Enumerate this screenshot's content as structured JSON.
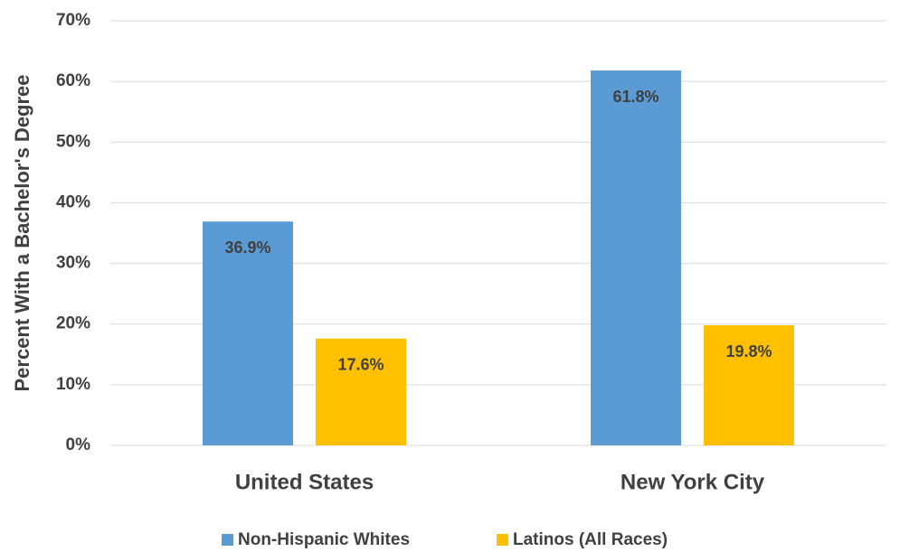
{
  "chart_data": {
    "type": "bar",
    "y_label": "Percent With a Bachelor's Degree",
    "categories": [
      "United States",
      "New York City"
    ],
    "series": [
      {
        "name": "Non-Hispanic Whites",
        "color": "#5b9bd5",
        "values": [
          36.9,
          61.8
        ],
        "value_labels": [
          "36.9%",
          "61.8%"
        ]
      },
      {
        "name": "Latinos (All Races)",
        "color": "#ffc000",
        "values": [
          17.6,
          19.8
        ],
        "value_labels": [
          "17.6%",
          "19.8%"
        ]
      }
    ],
    "ylim": [
      0,
      70
    ],
    "yticks": [
      {
        "value": 0,
        "label": "0%"
      },
      {
        "value": 10,
        "label": "10%"
      },
      {
        "value": 20,
        "label": "20%"
      },
      {
        "value": 30,
        "label": "30%"
      },
      {
        "value": 40,
        "label": "40%"
      },
      {
        "value": 50,
        "label": "50%"
      },
      {
        "value": 60,
        "label": "60%"
      },
      {
        "value": 70,
        "label": "70%"
      }
    ],
    "grid": true,
    "legend": "bottom"
  }
}
